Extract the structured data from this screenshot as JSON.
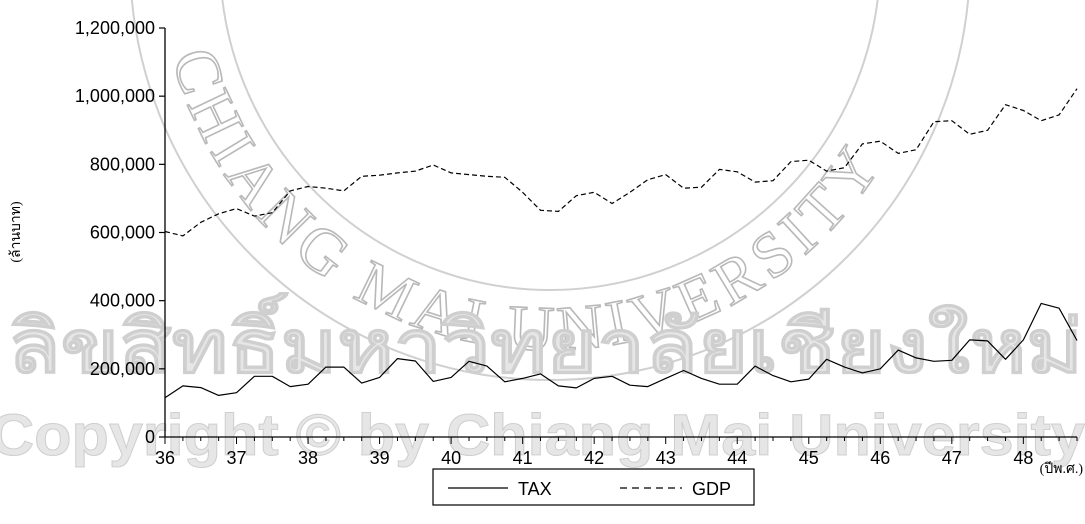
{
  "chart_data": {
    "type": "line",
    "title": "",
    "xlabel": "(ปีพ.ศ.)",
    "ylabel": "(ล้านบาท)",
    "x_ticks": [
      "36",
      "37",
      "38",
      "39",
      "40",
      "41",
      "42",
      "43",
      "44",
      "45",
      "46",
      "47",
      "48"
    ],
    "y_ticks": [
      "0",
      "200,000",
      "400,000",
      "600,000",
      "800,000",
      "1,000,000",
      "1,200,000"
    ],
    "ylim": [
      0,
      1200000
    ],
    "xlim": [
      36,
      48.75
    ],
    "grid": false,
    "legend_position": "bottom",
    "series": [
      {
        "name": "TAX",
        "style": "solid",
        "color": "#000000",
        "x": [
          36,
          36.25,
          36.5,
          36.75,
          37,
          37.25,
          37.5,
          37.75,
          38,
          38.25,
          38.5,
          38.75,
          39,
          39.25,
          39.5,
          39.75,
          40,
          40.25,
          40.5,
          40.75,
          41,
          41.25,
          41.5,
          41.75,
          42,
          42.25,
          42.5,
          42.75,
          43,
          43.25,
          43.5,
          43.75,
          44,
          44.25,
          44.5,
          44.75,
          45,
          45.25,
          45.5,
          45.75,
          46,
          46.25,
          46.5,
          46.75,
          47,
          47.25,
          47.5,
          47.75,
          48,
          48.25,
          48.5,
          48.75
        ],
        "values": [
          115000,
          150000,
          145000,
          122000,
          130000,
          178000,
          178000,
          148000,
          155000,
          205000,
          205000,
          158000,
          175000,
          230000,
          223000,
          163000,
          175000,
          222000,
          208000,
          162000,
          172000,
          185000,
          150000,
          144000,
          172000,
          178000,
          152000,
          148000,
          172000,
          195000,
          172000,
          155000,
          155000,
          208000,
          180000,
          162000,
          170000,
          228000,
          205000,
          188000,
          200000,
          255000,
          232000,
          222000,
          225000,
          285000,
          282000,
          228000,
          285000,
          392000,
          378000,
          283000
        ]
      },
      {
        "name": "GDP",
        "style": "dashed",
        "color": "#000000",
        "x": [
          36,
          36.25,
          36.5,
          36.75,
          37,
          37.25,
          37.5,
          37.75,
          38,
          38.25,
          38.5,
          38.75,
          39,
          39.25,
          39.5,
          39.75,
          40,
          40.25,
          40.5,
          40.75,
          41,
          41.25,
          41.5,
          41.75,
          42,
          42.25,
          42.5,
          42.75,
          43,
          43.25,
          43.5,
          43.75,
          44,
          44.25,
          44.5,
          44.75,
          45,
          45.25,
          45.5,
          45.75,
          46,
          46.25,
          46.5,
          46.75,
          47,
          47.25,
          47.5,
          47.75,
          48,
          48.25,
          48.5,
          48.75
        ],
        "values": [
          603000,
          590000,
          630000,
          655000,
          670000,
          648000,
          658000,
          722000,
          735000,
          730000,
          722000,
          765000,
          768000,
          775000,
          780000,
          798000,
          775000,
          770000,
          765000,
          762000,
          718000,
          665000,
          662000,
          708000,
          718000,
          685000,
          718000,
          755000,
          770000,
          730000,
          733000,
          785000,
          778000,
          748000,
          752000,
          808000,
          812000,
          780000,
          790000,
          860000,
          868000,
          832000,
          843000,
          925000,
          928000,
          888000,
          900000,
          975000,
          958000,
          928000,
          945000,
          1022000
        ]
      }
    ]
  },
  "watermark": {
    "arc_text": "CHIANG MAI UNIVERSITY",
    "thai_text": "ลิขสิทธิ์มหาวิทยาลัยเชียงใหม่",
    "copyright_text": "Copyright © by Chiang Mai University"
  }
}
